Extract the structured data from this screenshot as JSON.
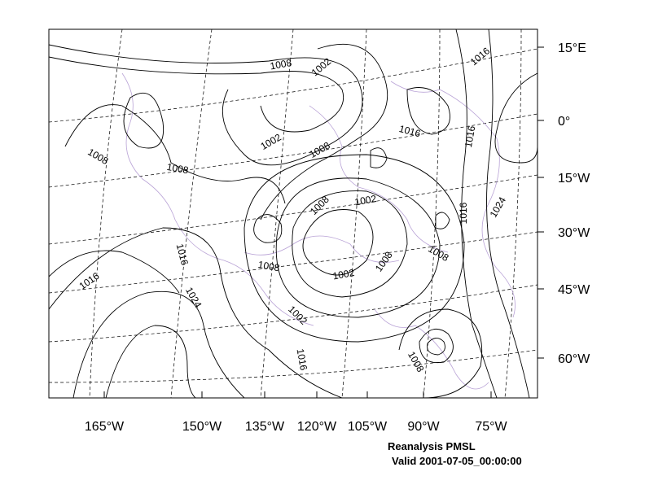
{
  "map": {
    "bottom_labels": [
      "165°W",
      "150°W",
      "135°W",
      "120°W",
      "105°W",
      "90°W",
      "75°W"
    ],
    "right_labels": [
      "15°E",
      "0°",
      "15°W",
      "30°W",
      "45°W",
      "60°W"
    ],
    "contour_labels": [
      1008,
      1002,
      1016,
      1016,
      1016,
      1008,
      1008,
      1002,
      1008,
      1008,
      1002,
      1016,
      1024,
      1016,
      1008,
      1002,
      1008,
      1008,
      1016,
      1024,
      1002,
      1016,
      1008
    ]
  },
  "caption": {
    "line1": "Reanalysis PMSL",
    "line2": "Valid 2001-07-05_00:00:00"
  }
}
